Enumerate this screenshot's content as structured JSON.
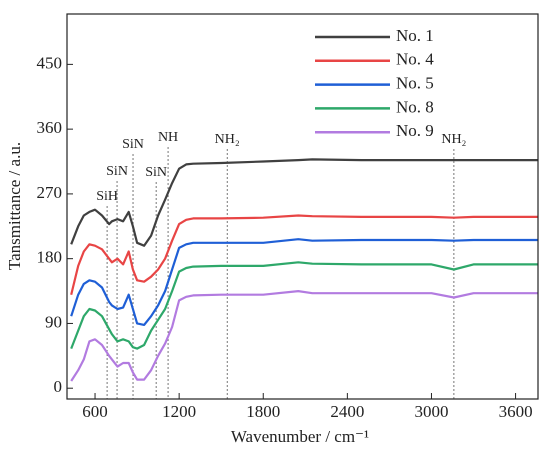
{
  "chart_data": {
    "type": "line",
    "x_label": "Wavenumber / cm⁻¹",
    "y_label": "Tansmittance / a.u.",
    "x": [
      430,
      480,
      520,
      560,
      600,
      650,
      700,
      720,
      760,
      800,
      840,
      870,
      900,
      950,
      1000,
      1050,
      1100,
      1150,
      1200,
      1250,
      1300,
      1500,
      1800,
      2050,
      2150,
      2500,
      3000,
      3160,
      3300,
      3760
    ],
    "series": [
      {
        "name": "No. 1",
        "color": "#404040",
        "values": [
          200,
          225,
          240,
          245,
          248,
          240,
          228,
          232,
          235,
          232,
          245,
          225,
          202,
          198,
          212,
          240,
          262,
          285,
          305,
          311,
          312,
          313,
          315,
          317,
          318,
          317,
          317,
          317,
          317,
          317
        ]
      },
      {
        "name": "No. 4",
        "color": "#e84545",
        "values": [
          130,
          170,
          190,
          200,
          198,
          193,
          180,
          175,
          180,
          172,
          190,
          165,
          150,
          148,
          155,
          165,
          180,
          205,
          228,
          234,
          236,
          236,
          237,
          240,
          239,
          238,
          238,
          237,
          238,
          238
        ]
      },
      {
        "name": "No. 5",
        "color": "#1f5fd6",
        "values": [
          100,
          130,
          145,
          150,
          148,
          140,
          120,
          115,
          110,
          112,
          130,
          110,
          90,
          88,
          100,
          115,
          135,
          165,
          195,
          200,
          202,
          202,
          202,
          207,
          205,
          206,
          206,
          205,
          206,
          206
        ]
      },
      {
        "name": "No. 8",
        "color": "#2ea86a",
        "values": [
          55,
          80,
          100,
          110,
          108,
          100,
          82,
          75,
          65,
          68,
          65,
          57,
          55,
          60,
          80,
          95,
          110,
          135,
          162,
          167,
          169,
          170,
          170,
          175,
          173,
          172,
          172,
          165,
          172,
          172
        ]
      },
      {
        "name": "No. 9",
        "color": "#b27be0",
        "values": [
          10,
          25,
          40,
          65,
          68,
          60,
          45,
          40,
          30,
          35,
          35,
          22,
          12,
          12,
          25,
          45,
          62,
          85,
          122,
          127,
          129,
          130,
          130,
          135,
          132,
          132,
          132,
          126,
          132,
          132
        ]
      }
    ],
    "xlim": [
      400,
      3760
    ],
    "ylim": [
      -15,
      520
    ],
    "xticks": [
      600,
      1200,
      1800,
      2400,
      3000,
      3600
    ],
    "yticks": [
      0,
      90,
      180,
      270,
      360,
      450
    ],
    "legend": "upper right",
    "annotations": [
      {
        "text": "SiH",
        "x": 686
      },
      {
        "text": "SiN",
        "x": 757
      },
      {
        "text": "SiN",
        "x": 871
      },
      {
        "text": "SiN",
        "x": 1036
      },
      {
        "text": "NH",
        "x": 1121
      },
      {
        "text": "NH₂",
        "x": 1543
      },
      {
        "text": "NH₂",
        "x": 3160
      }
    ]
  }
}
